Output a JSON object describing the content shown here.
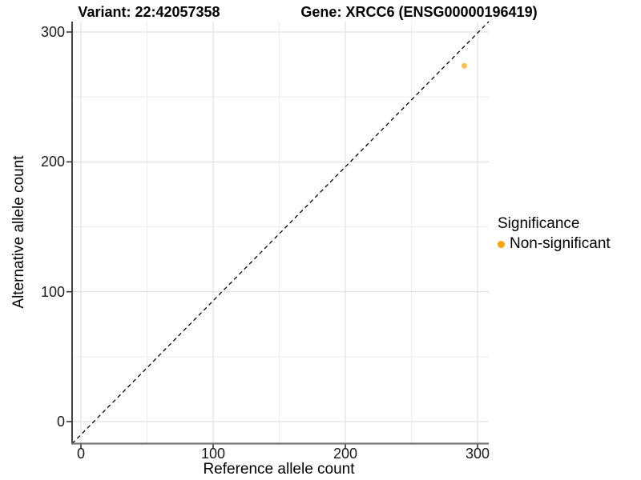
{
  "title": {
    "variant": "Variant: 22:42057358",
    "gene": "Gene: XRCC6 (ENSG00000196419)"
  },
  "axes": {
    "x": {
      "label": "Reference allele count",
      "tick_values": [
        0,
        100,
        200,
        300
      ]
    },
    "y": {
      "label": "Alternative allele count",
      "tick_values": [
        0,
        100,
        200,
        300
      ]
    }
  },
  "legend": {
    "title": "Significance",
    "items": [
      {
        "label": "Non-significant",
        "color": "#FFA500"
      }
    ]
  },
  "chart_data": {
    "type": "scatter",
    "title": "Variant: 22:42057358 | Gene: XRCC6 (ENSG00000196419)",
    "xlabel": "Reference allele count",
    "ylabel": "Alternative allele count",
    "xlim": [
      -20,
      308
    ],
    "ylim": [
      -17,
      310
    ],
    "x_ticks": [
      0,
      100,
      200,
      300
    ],
    "y_ticks": [
      0,
      100,
      200,
      300
    ],
    "grid": "major and minor gridlines, white background",
    "legend_position": "right",
    "series": [
      {
        "name": "Non-significant",
        "color": "#FFA500",
        "point_opacity": 0.7,
        "points": [
          {
            "x": 290,
            "y": 274
          }
        ]
      }
    ],
    "reference_line": {
      "style": "dashed",
      "slope": 1,
      "intercept": 0,
      "color": "#000000"
    }
  },
  "colors": {
    "background": "#FFFFFF",
    "grid_major": "#DBDBDB",
    "grid_minor": "#EDEDED",
    "axis_line_left": "#151515",
    "axis_line_bottom": "#757575",
    "tick_mark": "#333333",
    "text": "#000000",
    "point": "#FFA500"
  }
}
